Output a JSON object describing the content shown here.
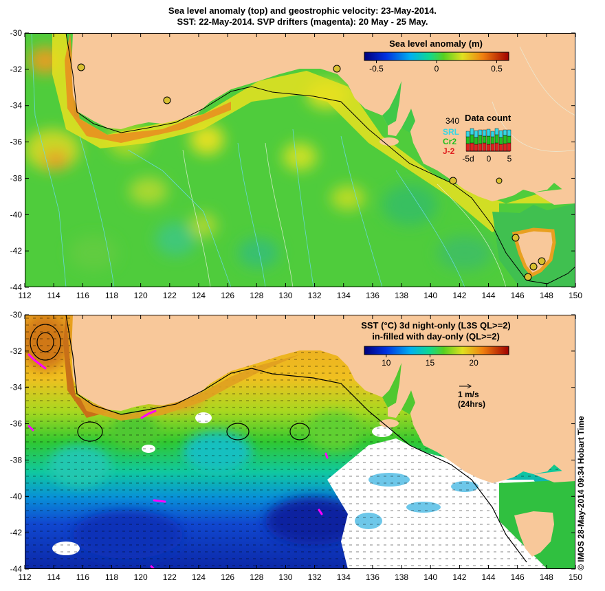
{
  "title": {
    "line1": "Sea level anomaly (top) and geostrophic velocity: 23-May-2014.",
    "line2": "SST: 22-May-2014. SVP drifters (magenta): 20 May - 25 May."
  },
  "axes": {
    "x_ticks": [
      "112",
      "114",
      "116",
      "118",
      "120",
      "122",
      "124",
      "126",
      "128",
      "130",
      "132",
      "134",
      "136",
      "138",
      "140",
      "142",
      "144",
      "146",
      "148",
      "150"
    ],
    "y_ticks": [
      "-30",
      "-32",
      "-34",
      "-36",
      "-38",
      "-40",
      "-42",
      "-44"
    ],
    "lon_range": [
      112,
      150
    ],
    "lat_range": [
      -44,
      -30
    ]
  },
  "top_panel": {
    "colorbar_title": "Sea level anomaly (m)",
    "colorbar_ticks": [
      "-0.5",
      "0",
      "0.5"
    ],
    "colorbar_range": [
      -0.6,
      0.6
    ],
    "data_count": {
      "title": "Data count",
      "max_label": "340",
      "legend": [
        {
          "label": "SRL",
          "color": "#33d6e6"
        },
        {
          "label": "Cr2",
          "color": "#20c020"
        },
        {
          "label": "J-2",
          "color": "#e02020"
        }
      ],
      "x_ticks": [
        "-5d",
        "0",
        "5"
      ]
    }
  },
  "bottom_panel": {
    "colorbar_title_line1": "SST (°C) 3d night-only (L3S QL>=2)",
    "colorbar_title_line2": "in-filled with day-only (QL>=2)",
    "colorbar_ticks": [
      "10",
      "15",
      "20"
    ],
    "colorbar_range": [
      7.5,
      24
    ],
    "velocity_scale": "1 m/s",
    "velocity_scale_note": "(24hrs)"
  },
  "credit": "© IMOS 28-May-2014 09:34 Hobart Time",
  "colors": {
    "land": "#f8c89a",
    "drifter": "#ff00ff",
    "ocean_sla": "#4fcc3c",
    "ocean_sst_cold": "#1a3cc8"
  }
}
